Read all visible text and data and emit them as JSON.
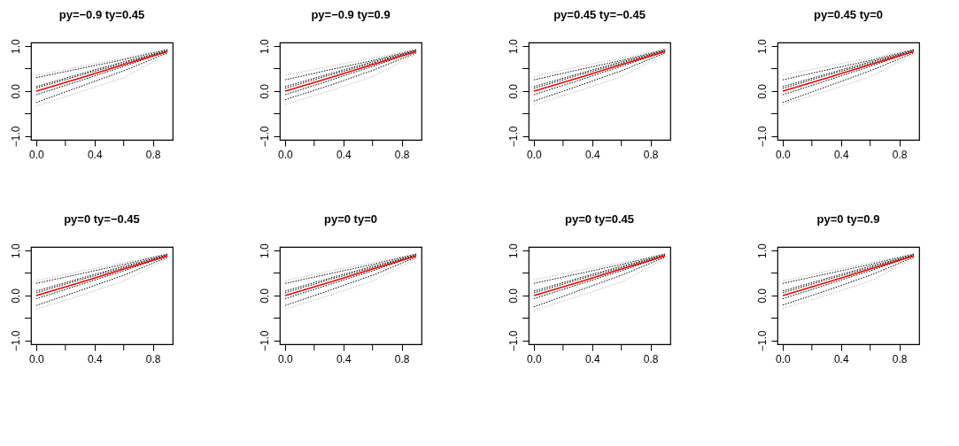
{
  "chart_data": [
    {
      "type": "line",
      "title": "py=−0.9 ty=0.45",
      "xlim": [
        -0.036,
        0.936
      ],
      "ylim": [
        -1.08,
        1.08
      ],
      "xticks": [
        {
          "value": 0,
          "label": "0.0"
        },
        {
          "value": 0.2,
          "label": null
        },
        {
          "value": 0.4,
          "label": "0.4"
        },
        {
          "value": 0.6,
          "label": null
        },
        {
          "value": 0.8,
          "label": "0.8"
        }
      ],
      "yticks": [
        {
          "value": -1,
          "label": "−1.0"
        },
        {
          "value": -0.5,
          "label": null
        },
        {
          "value": 0,
          "label": "0.0"
        },
        {
          "value": 0.5,
          "label": null
        },
        {
          "value": 1,
          "label": "1.0"
        }
      ],
      "grid": false,
      "marker": "none",
      "x": [
        0,
        0.3,
        0.6,
        0.9
      ],
      "series": [
        {
          "color": "#bebebe",
          "line_style": "dotted",
          "values": [
            0.35,
            0.55,
            0.73,
            0.93
          ]
        },
        {
          "color": "#bebebe",
          "line_style": "dotted",
          "values": [
            -0.33,
            -0.02,
            0.3,
            0.82
          ]
        },
        {
          "color": "#000000",
          "line_style": "dotted",
          "values": [
            0.3,
            0.5,
            0.7,
            0.92
          ]
        },
        {
          "color": "#000000",
          "line_style": "dotted",
          "values": [
            0.1,
            0.38,
            0.65,
            0.9
          ]
        },
        {
          "color": "#000000",
          "line_style": "dotted",
          "values": [
            0.07,
            0.35,
            0.62,
            0.9
          ]
        },
        {
          "color": "#000000",
          "line_style": "dotted",
          "values": [
            -0.08,
            0.23,
            0.55,
            0.88
          ]
        },
        {
          "color": "#000000",
          "line_style": "dotted",
          "values": [
            -0.25,
            0.1,
            0.45,
            0.85
          ]
        },
        {
          "color": "#ff0000",
          "line_style": "solid",
          "values": [
            0,
            0.29,
            0.59,
            0.88
          ]
        }
      ]
    },
    {
      "type": "line",
      "title": "py=−0.9 ty=0.9",
      "xlim": [
        -0.036,
        0.936
      ],
      "ylim": [
        -1.08,
        1.08
      ],
      "xticks": [
        {
          "value": 0,
          "label": "0.0"
        },
        {
          "value": 0.2,
          "label": null
        },
        {
          "value": 0.4,
          "label": "0.4"
        },
        {
          "value": 0.6,
          "label": null
        },
        {
          "value": 0.8,
          "label": "0.8"
        }
      ],
      "yticks": [
        {
          "value": -1,
          "label": "−1.0"
        },
        {
          "value": -0.5,
          "label": null
        },
        {
          "value": 0,
          "label": "0.0"
        },
        {
          "value": 0.5,
          "label": null
        },
        {
          "value": 1,
          "label": "1.0"
        }
      ],
      "grid": false,
      "marker": "none",
      "x": [
        0,
        0.3,
        0.6,
        0.9
      ],
      "series": [
        {
          "color": "#bebebe",
          "line_style": "dotted",
          "values": [
            0.35,
            0.55,
            0.73,
            0.93
          ]
        },
        {
          "color": "#bebebe",
          "line_style": "dotted",
          "values": [
            -0.3,
            0.0,
            0.32,
            0.82
          ]
        },
        {
          "color": "#000000",
          "line_style": "dotted",
          "values": [
            0.25,
            0.47,
            0.68,
            0.92
          ]
        },
        {
          "color": "#000000",
          "line_style": "dotted",
          "values": [
            0.1,
            0.38,
            0.65,
            0.9
          ]
        },
        {
          "color": "#000000",
          "line_style": "dotted",
          "values": [
            0.06,
            0.35,
            0.62,
            0.9
          ]
        },
        {
          "color": "#000000",
          "line_style": "dotted",
          "values": [
            -0.08,
            0.23,
            0.55,
            0.88
          ]
        },
        {
          "color": "#000000",
          "line_style": "dotted",
          "values": [
            -0.19,
            0.12,
            0.46,
            0.85
          ]
        },
        {
          "color": "#ff0000",
          "line_style": "solid",
          "values": [
            0,
            0.29,
            0.59,
            0.88
          ]
        }
      ]
    },
    {
      "type": "line",
      "title": "py=0.45 ty=−0.45",
      "xlim": [
        -0.036,
        0.936
      ],
      "ylim": [
        -1.08,
        1.08
      ],
      "xticks": [
        {
          "value": 0,
          "label": "0.0"
        },
        {
          "value": 0.2,
          "label": null
        },
        {
          "value": 0.4,
          "label": "0.4"
        },
        {
          "value": 0.6,
          "label": null
        },
        {
          "value": 0.8,
          "label": "0.8"
        }
      ],
      "yticks": [
        {
          "value": -1,
          "label": "−1.0"
        },
        {
          "value": -0.5,
          "label": null
        },
        {
          "value": 0,
          "label": "0.0"
        },
        {
          "value": 0.5,
          "label": null
        },
        {
          "value": 1,
          "label": "1.0"
        }
      ],
      "grid": false,
      "marker": "none",
      "x": [
        0,
        0.3,
        0.6,
        0.9
      ],
      "series": [
        {
          "color": "#bebebe",
          "line_style": "dotted",
          "values": [
            0.33,
            0.54,
            0.73,
            0.93
          ]
        },
        {
          "color": "#bebebe",
          "line_style": "dotted",
          "values": [
            -0.3,
            0.0,
            0.32,
            0.82
          ]
        },
        {
          "color": "#000000",
          "line_style": "dotted",
          "values": [
            0.25,
            0.47,
            0.68,
            0.92
          ]
        },
        {
          "color": "#000000",
          "line_style": "dotted",
          "values": [
            0.1,
            0.38,
            0.65,
            0.9
          ]
        },
        {
          "color": "#000000",
          "line_style": "dotted",
          "values": [
            0.06,
            0.35,
            0.62,
            0.9
          ]
        },
        {
          "color": "#000000",
          "line_style": "dotted",
          "values": [
            -0.08,
            0.23,
            0.55,
            0.88
          ]
        },
        {
          "color": "#000000",
          "line_style": "dotted",
          "values": [
            -0.22,
            0.11,
            0.45,
            0.85
          ]
        },
        {
          "color": "#ff0000",
          "line_style": "solid",
          "values": [
            0,
            0.29,
            0.59,
            0.88
          ]
        }
      ]
    },
    {
      "type": "line",
      "title": "py=0.45 ty=0",
      "xlim": [
        -0.036,
        0.936
      ],
      "ylim": [
        -1.08,
        1.08
      ],
      "xticks": [
        {
          "value": 0,
          "label": "0.0"
        },
        {
          "value": 0.2,
          "label": null
        },
        {
          "value": 0.4,
          "label": "0.4"
        },
        {
          "value": 0.6,
          "label": null
        },
        {
          "value": 0.8,
          "label": "0.8"
        }
      ],
      "yticks": [
        {
          "value": -1,
          "label": "−1.0"
        },
        {
          "value": -0.5,
          "label": null
        },
        {
          "value": 0,
          "label": "0.0"
        },
        {
          "value": 0.5,
          "label": null
        },
        {
          "value": 1,
          "label": "1.0"
        }
      ],
      "grid": false,
      "marker": "none",
      "x": [
        0,
        0.3,
        0.6,
        0.9
      ],
      "series": [
        {
          "color": "#bebebe",
          "line_style": "dotted",
          "values": [
            0.35,
            0.55,
            0.73,
            0.93
          ]
        },
        {
          "color": "#bebebe",
          "line_style": "dotted",
          "values": [
            -0.3,
            0.0,
            0.32,
            0.82
          ]
        },
        {
          "color": "#000000",
          "line_style": "dotted",
          "values": [
            0.25,
            0.47,
            0.68,
            0.92
          ]
        },
        {
          "color": "#000000",
          "line_style": "dotted",
          "values": [
            0.1,
            0.38,
            0.65,
            0.9
          ]
        },
        {
          "color": "#000000",
          "line_style": "dotted",
          "values": [
            0.06,
            0.35,
            0.62,
            0.9
          ]
        },
        {
          "color": "#000000",
          "line_style": "dotted",
          "values": [
            -0.08,
            0.23,
            0.55,
            0.88
          ]
        },
        {
          "color": "#000000",
          "line_style": "dotted",
          "values": [
            -0.25,
            0.1,
            0.45,
            0.85
          ]
        },
        {
          "color": "#ff0000",
          "line_style": "solid",
          "values": [
            0,
            0.29,
            0.59,
            0.88
          ]
        }
      ]
    },
    {
      "type": "line",
      "title": "py=0 ty=−0.45",
      "xlim": [
        -0.036,
        0.936
      ],
      "ylim": [
        -1.08,
        1.08
      ],
      "xticks": [
        {
          "value": 0,
          "label": "0.0"
        },
        {
          "value": 0.2,
          "label": null
        },
        {
          "value": 0.4,
          "label": "0.4"
        },
        {
          "value": 0.6,
          "label": null
        },
        {
          "value": 0.8,
          "label": "0.8"
        }
      ],
      "yticks": [
        {
          "value": -1,
          "label": "−1.0"
        },
        {
          "value": -0.5,
          "label": null
        },
        {
          "value": 0,
          "label": "0.0"
        },
        {
          "value": 0.5,
          "label": null
        },
        {
          "value": 1,
          "label": "1.0"
        }
      ],
      "grid": false,
      "marker": "none",
      "x": [
        0,
        0.3,
        0.6,
        0.9
      ],
      "series": [
        {
          "color": "#bebebe",
          "line_style": "dotted",
          "values": [
            0.33,
            0.54,
            0.73,
            0.93
          ]
        },
        {
          "color": "#bebebe",
          "line_style": "dotted",
          "values": [
            -0.3,
            0.0,
            0.32,
            0.82
          ]
        },
        {
          "color": "#000000",
          "line_style": "dotted",
          "values": [
            0.27,
            0.48,
            0.69,
            0.92
          ]
        },
        {
          "color": "#000000",
          "line_style": "dotted",
          "values": [
            0.1,
            0.38,
            0.65,
            0.9
          ]
        },
        {
          "color": "#000000",
          "line_style": "dotted",
          "values": [
            0.06,
            0.35,
            0.62,
            0.9
          ]
        },
        {
          "color": "#000000",
          "line_style": "dotted",
          "values": [
            -0.07,
            0.24,
            0.55,
            0.88
          ]
        },
        {
          "color": "#000000",
          "line_style": "dotted",
          "values": [
            -0.22,
            0.11,
            0.45,
            0.85
          ]
        },
        {
          "color": "#ff0000",
          "line_style": "solid",
          "values": [
            0,
            0.29,
            0.59,
            0.88
          ]
        }
      ]
    },
    {
      "type": "line",
      "title": "py=0 ty=0",
      "xlim": [
        -0.036,
        0.936
      ],
      "ylim": [
        -1.08,
        1.08
      ],
      "xticks": [
        {
          "value": 0,
          "label": "0.0"
        },
        {
          "value": 0.2,
          "label": null
        },
        {
          "value": 0.4,
          "label": "0.4"
        },
        {
          "value": 0.6,
          "label": null
        },
        {
          "value": 0.8,
          "label": "0.8"
        }
      ],
      "yticks": [
        {
          "value": -1,
          "label": "−1.0"
        },
        {
          "value": -0.5,
          "label": null
        },
        {
          "value": 0,
          "label": "0.0"
        },
        {
          "value": 0.5,
          "label": null
        },
        {
          "value": 1,
          "label": "1.0"
        }
      ],
      "grid": false,
      "marker": "none",
      "x": [
        0,
        0.3,
        0.6,
        0.9
      ],
      "series": [
        {
          "color": "#bebebe",
          "line_style": "dotted",
          "values": [
            0.33,
            0.54,
            0.73,
            0.93
          ]
        },
        {
          "color": "#bebebe",
          "line_style": "dotted",
          "values": [
            -0.3,
            0.0,
            0.32,
            0.82
          ]
        },
        {
          "color": "#000000",
          "line_style": "dotted",
          "values": [
            0.27,
            0.48,
            0.69,
            0.92
          ]
        },
        {
          "color": "#000000",
          "line_style": "dotted",
          "values": [
            0.1,
            0.38,
            0.65,
            0.9
          ]
        },
        {
          "color": "#000000",
          "line_style": "dotted",
          "values": [
            0.06,
            0.35,
            0.62,
            0.9
          ]
        },
        {
          "color": "#000000",
          "line_style": "dotted",
          "values": [
            -0.07,
            0.24,
            0.55,
            0.88
          ]
        },
        {
          "color": "#000000",
          "line_style": "dotted",
          "values": [
            -0.22,
            0.11,
            0.45,
            0.85
          ]
        },
        {
          "color": "#ff0000",
          "line_style": "solid",
          "values": [
            0,
            0.29,
            0.59,
            0.88
          ]
        }
      ]
    },
    {
      "type": "line",
      "title": "py=0 ty=0.45",
      "xlim": [
        -0.036,
        0.936
      ],
      "ylim": [
        -1.08,
        1.08
      ],
      "xticks": [
        {
          "value": 0,
          "label": "0.0"
        },
        {
          "value": 0.2,
          "label": null
        },
        {
          "value": 0.4,
          "label": "0.4"
        },
        {
          "value": 0.6,
          "label": null
        },
        {
          "value": 0.8,
          "label": "0.8"
        }
      ],
      "yticks": [
        {
          "value": -1,
          "label": "−1.0"
        },
        {
          "value": -0.5,
          "label": null
        },
        {
          "value": 0,
          "label": "0.0"
        },
        {
          "value": 0.5,
          "label": null
        },
        {
          "value": 1,
          "label": "1.0"
        }
      ],
      "grid": false,
      "marker": "none",
      "x": [
        0,
        0.3,
        0.6,
        0.9
      ],
      "series": [
        {
          "color": "#bebebe",
          "line_style": "dotted",
          "values": [
            0.35,
            0.55,
            0.73,
            0.93
          ]
        },
        {
          "color": "#bebebe",
          "line_style": "dotted",
          "values": [
            -0.33,
            -0.02,
            0.3,
            0.82
          ]
        },
        {
          "color": "#000000",
          "line_style": "dotted",
          "values": [
            0.27,
            0.48,
            0.69,
            0.92
          ]
        },
        {
          "color": "#000000",
          "line_style": "dotted",
          "values": [
            0.1,
            0.38,
            0.65,
            0.9
          ]
        },
        {
          "color": "#000000",
          "line_style": "dotted",
          "values": [
            0.06,
            0.35,
            0.62,
            0.9
          ]
        },
        {
          "color": "#000000",
          "line_style": "dotted",
          "values": [
            -0.07,
            0.24,
            0.55,
            0.88
          ]
        },
        {
          "color": "#000000",
          "line_style": "dotted",
          "values": [
            -0.25,
            0.1,
            0.45,
            0.85
          ]
        },
        {
          "color": "#ff0000",
          "line_style": "solid",
          "values": [
            0,
            0.29,
            0.59,
            0.88
          ]
        }
      ]
    },
    {
      "type": "line",
      "title": "py=0 ty=0.9",
      "xlim": [
        -0.036,
        0.936
      ],
      "ylim": [
        -1.08,
        1.08
      ],
      "xticks": [
        {
          "value": 0,
          "label": "0.0"
        },
        {
          "value": 0.2,
          "label": null
        },
        {
          "value": 0.4,
          "label": "0.4"
        },
        {
          "value": 0.6,
          "label": null
        },
        {
          "value": 0.8,
          "label": "0.8"
        }
      ],
      "yticks": [
        {
          "value": -1,
          "label": "−1.0"
        },
        {
          "value": -0.5,
          "label": null
        },
        {
          "value": 0,
          "label": "0.0"
        },
        {
          "value": 0.5,
          "label": null
        },
        {
          "value": 1,
          "label": "1.0"
        }
      ],
      "grid": false,
      "marker": "none",
      "x": [
        0,
        0.3,
        0.6,
        0.9
      ],
      "series": [
        {
          "color": "#bebebe",
          "line_style": "dotted",
          "values": [
            0.33,
            0.54,
            0.73,
            0.93
          ]
        },
        {
          "color": "#bebebe",
          "line_style": "dotted",
          "values": [
            -0.29,
            0.01,
            0.32,
            0.82
          ]
        },
        {
          "color": "#000000",
          "line_style": "dotted",
          "values": [
            0.27,
            0.48,
            0.69,
            0.92
          ]
        },
        {
          "color": "#000000",
          "line_style": "dotted",
          "values": [
            0.1,
            0.38,
            0.65,
            0.9
          ]
        },
        {
          "color": "#000000",
          "line_style": "dotted",
          "values": [
            0.06,
            0.35,
            0.62,
            0.9
          ]
        },
        {
          "color": "#000000",
          "line_style": "dotted",
          "values": [
            -0.07,
            0.24,
            0.55,
            0.88
          ]
        },
        {
          "color": "#000000",
          "line_style": "dotted",
          "values": [
            -0.21,
            0.11,
            0.45,
            0.85
          ]
        },
        {
          "color": "#ff0000",
          "line_style": "solid",
          "values": [
            0,
            0.29,
            0.59,
            0.88
          ]
        }
      ]
    }
  ]
}
